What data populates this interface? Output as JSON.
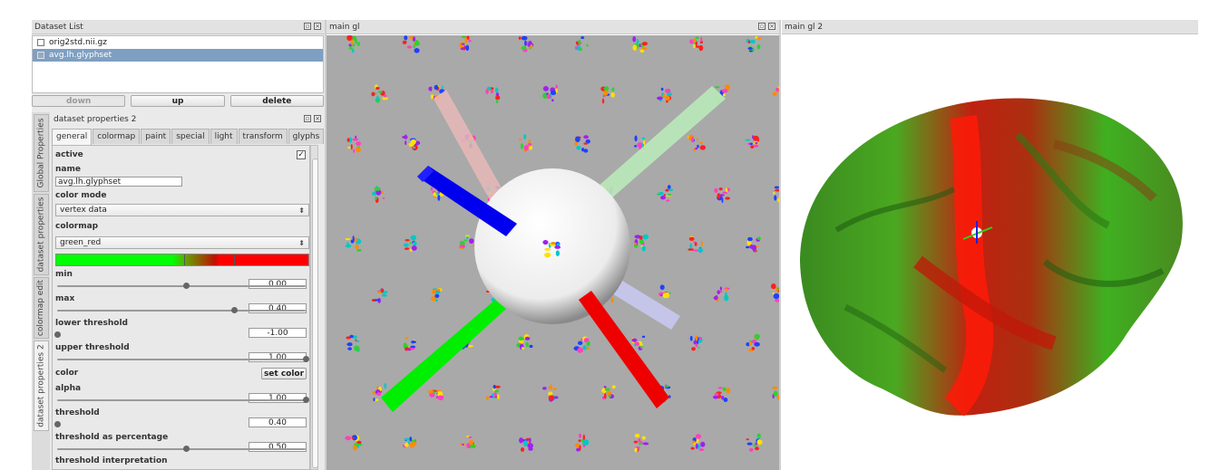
{
  "dataset_list": {
    "title": "Dataset List",
    "items": [
      {
        "label": "orig2std.nii.gz",
        "selected": false
      },
      {
        "label": "avg.lh.glyphset",
        "selected": true
      }
    ],
    "buttons": {
      "down": "down",
      "up": "up",
      "delete": "delete"
    }
  },
  "vertical_tabs": [
    "Global Properties",
    "dataset properties",
    "colormap edit",
    "dataset properties 2"
  ],
  "properties": {
    "title": "dataset properties 2",
    "tabs": [
      "general",
      "colormap",
      "paint",
      "special",
      "light",
      "transform",
      "glyphs"
    ],
    "active_label": "active",
    "name_label": "name",
    "name_value": "avg.lh.glyphset",
    "color_mode_label": "color mode",
    "color_mode_value": "vertex data",
    "colormap_label": "colormap",
    "colormap_value": "green_red",
    "min_label": "min",
    "min_value": "0.00",
    "min_pos": 0.52,
    "max_label": "max",
    "max_value": "0.40",
    "max_pos": 0.71,
    "lower_threshold_label": "lower threshold",
    "lower_threshold_value": "-1.00",
    "lower_threshold_pos": 0.0,
    "upper_threshold_label": "upper threshold",
    "upper_threshold_value": "1.00",
    "upper_threshold_pos": 1.0,
    "color_label": "color",
    "set_color_button": "set color",
    "alpha_label": "alpha",
    "alpha_value": "1.00",
    "alpha_pos": 1.0,
    "threshold_label": "threshold",
    "threshold_value": "0.40",
    "threshold_pos": 0.0,
    "threshold_pct_label": "threshold as percentage",
    "threshold_pct_value": "0.50",
    "threshold_pct_pos": 0.52,
    "threshold_interp_label": "threshold interpretation"
  },
  "views": {
    "main_gl": "main gl",
    "main_gl_2": "main gl 2"
  },
  "colors": {
    "selection": "#7f9fc2",
    "colormap_green": "#00ff00",
    "colormap_red": "#ff0000"
  }
}
